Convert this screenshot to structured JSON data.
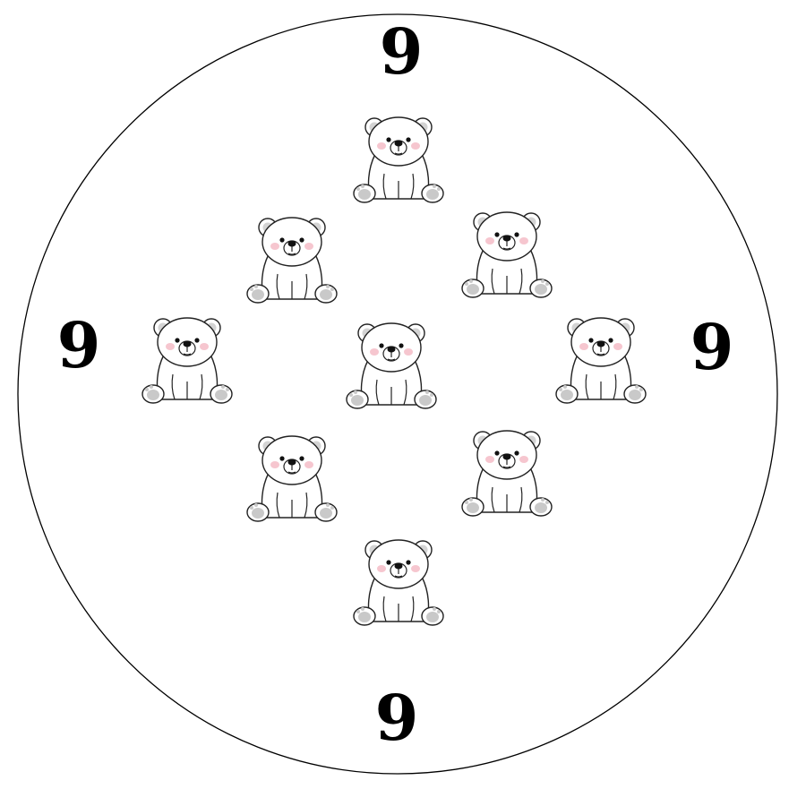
{
  "numbers": {
    "top": "9",
    "left": "9",
    "right": "9",
    "bottom": "9"
  },
  "bears": {
    "count": 9,
    "icon": "polar-bear-icon",
    "cheek_color": "#f6c6cf",
    "paw_color": "#c9c9c9",
    "outline_color": "#222222"
  },
  "circle": {
    "stroke_color": "#000000",
    "fill_color": "#ffffff"
  }
}
